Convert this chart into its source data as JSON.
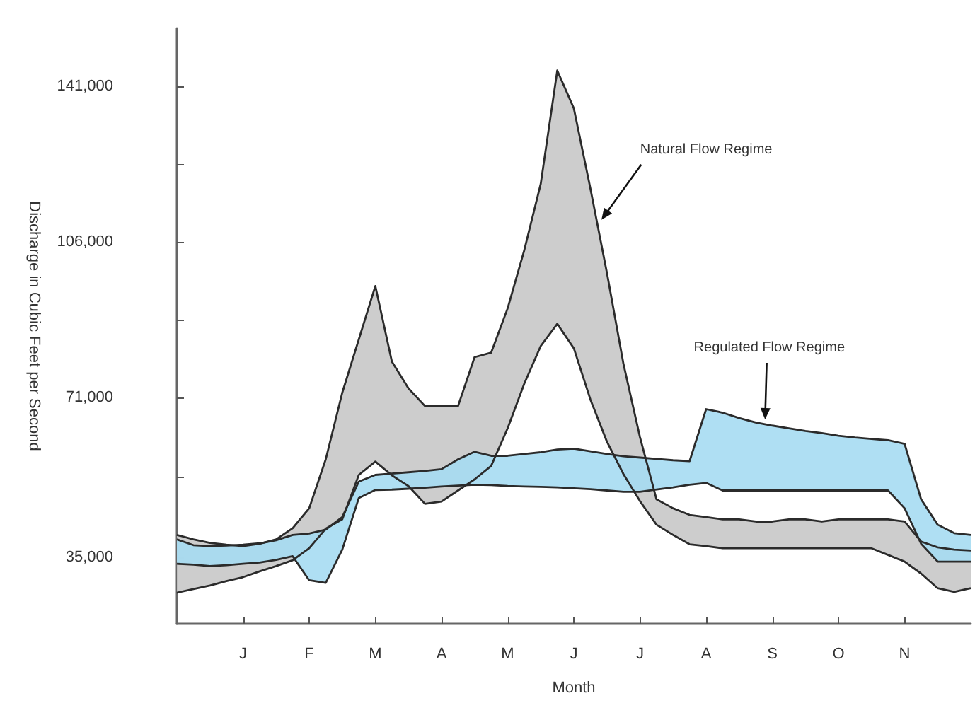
{
  "chart_data": {
    "type": "area",
    "xlabel": "Month",
    "ylabel": "Discharge in Cubic Feet per Second",
    "categories": [
      null,
      null,
      null,
      null,
      "J",
      null,
      null,
      null,
      "F",
      null,
      null,
      null,
      "M",
      null,
      null,
      null,
      "A",
      null,
      null,
      null,
      "M",
      null,
      null,
      null,
      "J",
      null,
      null,
      null,
      "J",
      null,
      null,
      null,
      "A",
      null,
      null,
      null,
      "S",
      null,
      null,
      null,
      "O",
      null,
      null,
      null,
      "N",
      null,
      null,
      null,
      null
    ],
    "ylim": [
      20000,
      154000
    ],
    "yticks": [
      {
        "value": 35000,
        "label": "35,000"
      },
      {
        "value": 53000,
        "label": null
      },
      {
        "value": 71000,
        "label": "71,000"
      },
      {
        "value": 88500,
        "label": null
      },
      {
        "value": 106000,
        "label": "106,000"
      },
      {
        "value": 123500,
        "label": null
      },
      {
        "value": 141000,
        "label": "141,000"
      }
    ],
    "grid": false,
    "annotations": [
      "Natural Flow Regime",
      {
        "text": "Regulated Flow Regime",
        "y": 66000
      }
    ],
    "series": [
      {
        "color": "#c8c8c8",
        "values": [
          40000,
          39000,
          38200,
          37800,
          37500,
          38000,
          39000,
          41500,
          46000,
          57000,
          72000,
          84000,
          96000,
          79000,
          73000,
          69000,
          69000,
          69000,
          80000,
          81000,
          91000,
          104000,
          119000,
          144500,
          136000,
          118000,
          99000,
          78500,
          62000,
          48000,
          46000,
          44500,
          44000,
          43500,
          43500,
          43000,
          43000,
          43500,
          43500,
          43000,
          43500,
          43500,
          43500,
          43500,
          43000,
          38500,
          37200,
          36700,
          36500
        ]
      },
      {
        "type": "line",
        "color": "#2b2b2b",
        "values": [
          27000,
          27800,
          28600,
          29600,
          30500,
          31800,
          33000,
          34300,
          37000,
          41400,
          43500,
          53500,
          56500,
          53400,
          51000,
          47000,
          47500,
          50000,
          52500,
          55500,
          64000,
          74000,
          82500,
          87500,
          82000,
          70500,
          61000,
          53700,
          47600,
          42300,
          40000,
          37900,
          37500,
          37000,
          37000,
          37000,
          37000,
          37000,
          37000,
          37000,
          37000,
          37000,
          37000,
          35500,
          34000,
          31300,
          28000,
          27200,
          28000
        ]
      },
      {
        "color": "#a6dcf2",
        "values": [
          39000,
          37700,
          37500,
          37600,
          37800,
          38100,
          38800,
          40000,
          40300,
          41200,
          44000,
          52000,
          53500,
          53800,
          54100,
          54400,
          54800,
          57000,
          58700,
          57800,
          57800,
          58200,
          58600,
          59200,
          59400,
          58800,
          58200,
          57700,
          57400,
          57100,
          56800,
          56600,
          68300,
          67500,
          66300,
          65300,
          64600,
          64000,
          63400,
          62900,
          62300,
          61900,
          61600,
          61300,
          60500,
          48000,
          42300,
          40400,
          40000
        ]
      },
      {
        "type": "line",
        "color": "#2b2b2b",
        "values": [
          33500,
          33300,
          33000,
          33200,
          33500,
          33800,
          34400,
          35200,
          29800,
          29200,
          36700,
          48300,
          50100,
          50200,
          50400,
          50600,
          50900,
          51100,
          51300,
          51200,
          51000,
          50900,
          50800,
          50700,
          50500,
          50300,
          50000,
          49700,
          49700,
          50200,
          50700,
          51300,
          51700,
          50000,
          50000,
          50000,
          50000,
          50000,
          50000,
          50000,
          50000,
          50000,
          50000,
          50000,
          46000,
          38000,
          34000,
          34000,
          34000
        ]
      }
    ]
  }
}
